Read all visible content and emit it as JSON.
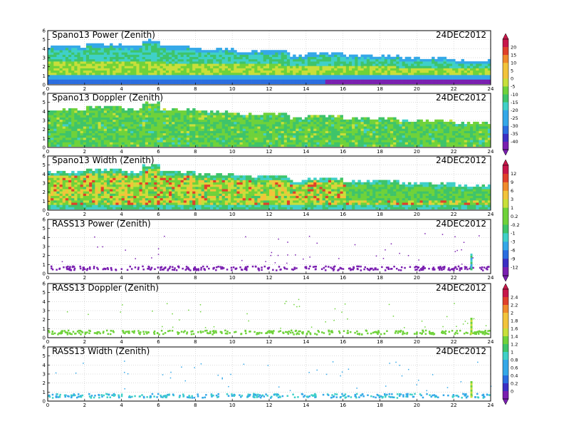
{
  "figure": {
    "date": "24DEC2012"
  },
  "colors": {
    "palette": [
      "#7a1fb0",
      "#3b2fc4",
      "#2a6de0",
      "#34a8e8",
      "#3fd0c8",
      "#3ec46a",
      "#6fd23a",
      "#c8df3a",
      "#f2c33a",
      "#f08a2a",
      "#e0402a",
      "#c8174a"
    ],
    "background": "#ffffff",
    "grid": "#b8b8b8"
  },
  "chart_data": [
    {
      "type": "heatmap",
      "title": "Spano13 Power (Zenith)",
      "x_ticks": [
        "0",
        "2",
        "4",
        "6",
        "8",
        "10",
        "12",
        "14",
        "16",
        "18",
        "20",
        "22",
        "24"
      ],
      "y_ticks": [
        "0",
        "1",
        "2",
        "3",
        "4",
        "5",
        "6"
      ],
      "xlim": [
        0,
        24
      ],
      "ylim": [
        0,
        6
      ],
      "colorbar": [
        "20",
        "15",
        "10",
        "5",
        "0",
        "-5",
        "-10",
        "-15",
        "-20",
        "-25",
        "-30",
        "-35",
        "-40"
      ],
      "mode": "dense",
      "top_height": [
        4.3,
        4.3,
        4.6,
        4.6,
        4.3,
        5.0,
        4.3,
        4.3,
        4.0,
        4.0,
        3.8,
        3.8,
        3.8,
        3.3,
        3.6,
        3.6,
        3.3,
        3.3,
        3.3,
        3.0,
        3.0,
        3.0,
        2.7,
        2.7,
        2.7
      ]
    },
    {
      "type": "heatmap",
      "title": "Spano13 Doppler (Zenith)",
      "x_ticks": [
        "0",
        "2",
        "4",
        "6",
        "8",
        "10",
        "12",
        "14",
        "16",
        "18",
        "20",
        "22",
        "24"
      ],
      "y_ticks": [
        "0",
        "1",
        "2",
        "3",
        "4",
        "5",
        "6"
      ],
      "xlim": [
        0,
        24
      ],
      "ylim": [
        0,
        6
      ],
      "mode": "dense",
      "top_height": [
        4.3,
        4.3,
        4.6,
        4.6,
        4.3,
        5.0,
        4.3,
        4.3,
        4.0,
        4.0,
        3.8,
        3.8,
        3.8,
        3.3,
        3.6,
        3.6,
        3.3,
        3.3,
        3.3,
        3.0,
        3.0,
        3.0,
        2.7,
        2.7,
        2.7
      ]
    },
    {
      "type": "heatmap",
      "title": "Spano13 Width (Zenith)",
      "x_ticks": [
        "0",
        "2",
        "4",
        "6",
        "8",
        "10",
        "12",
        "14",
        "16",
        "18",
        "20",
        "22",
        "24"
      ],
      "y_ticks": [
        "0",
        "1",
        "2",
        "3",
        "4",
        "5",
        "6"
      ],
      "xlim": [
        0,
        24
      ],
      "ylim": [
        0,
        6
      ],
      "colorbar": [
        "12",
        "9",
        "6",
        "3",
        "1",
        "0.2",
        "-0.2",
        "-1",
        "-3",
        "-6",
        "-9",
        "-12"
      ],
      "mode": "dense",
      "top_height": [
        4.3,
        4.3,
        4.6,
        4.6,
        4.3,
        5.0,
        4.3,
        4.3,
        4.0,
        4.0,
        3.8,
        3.8,
        3.8,
        3.3,
        3.6,
        3.6,
        3.3,
        3.3,
        3.3,
        3.0,
        3.0,
        3.0,
        2.7,
        2.7,
        2.7
      ]
    },
    {
      "type": "heatmap",
      "title": "RASS13 Power (Zenith)",
      "x_ticks": [
        "0",
        "2",
        "4",
        "6",
        "8",
        "10",
        "12",
        "14",
        "16",
        "18",
        "20",
        "22",
        "24"
      ],
      "y_ticks": [
        "0",
        "1",
        "2",
        "3",
        "4",
        "5",
        "6"
      ],
      "xlim": [
        0,
        24
      ],
      "ylim": [
        0,
        6
      ],
      "mode": "sparse",
      "band": [
        0.45,
        0.9
      ]
    },
    {
      "type": "heatmap",
      "title": "RASS13 Doppler (Zenith)",
      "x_ticks": [
        "0",
        "2",
        "4",
        "6",
        "8",
        "10",
        "12",
        "14",
        "16",
        "18",
        "20",
        "22",
        "24"
      ],
      "y_ticks": [
        "0",
        "1",
        "2",
        "3",
        "4",
        "5",
        "6"
      ],
      "xlim": [
        0,
        24
      ],
      "ylim": [
        0,
        6
      ],
      "colorbar": [
        "2.4",
        "2.2",
        "2",
        "1.8",
        "1.6",
        "1.4",
        "1.2",
        "1",
        "0.8",
        "0.6",
        "0.4",
        "0.2",
        "0"
      ],
      "mode": "sparse",
      "band": [
        0.45,
        0.9
      ]
    },
    {
      "type": "heatmap",
      "title": "RASS13 Width (Zenith)",
      "x_ticks": [
        "0",
        "2",
        "4",
        "6",
        "8",
        "10",
        "12",
        "14",
        "16",
        "18",
        "20",
        "22",
        "24"
      ],
      "y_ticks": [
        "0",
        "1",
        "2",
        "3",
        "4",
        "5",
        "6"
      ],
      "xlim": [
        0,
        24
      ],
      "ylim": [
        0,
        6
      ],
      "mode": "sparse",
      "band": [
        0.45,
        0.9
      ]
    }
  ]
}
